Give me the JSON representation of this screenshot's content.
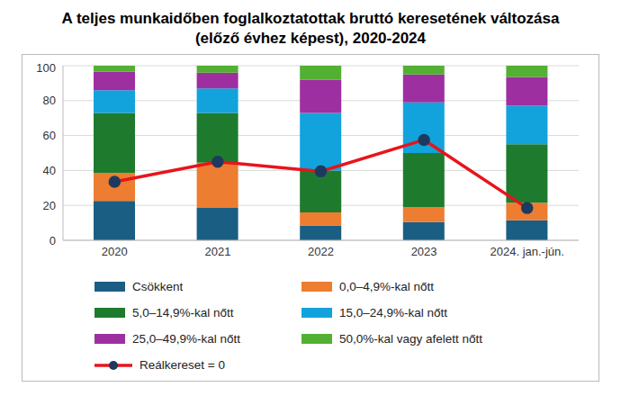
{
  "chart_data": {
    "type": "bar",
    "title": "A teljes munkaidőben foglalkoztatottak bruttó keresetének változása (előző évhez képest), 2020-2024",
    "categories": [
      "2020",
      "2021",
      "2022",
      "2023",
      "2024. jan.-jún."
    ],
    "series": [
      {
        "name": "Csökkent",
        "color": "#1b5e84",
        "type": "bar",
        "values": [
          22.5,
          18.5,
          8.5,
          10.5,
          11.5
        ]
      },
      {
        "name": "0,0–4,9%-kal nőtt",
        "color": "#ed7d31",
        "type": "bar",
        "values": [
          16,
          26,
          7.5,
          8.5,
          10
        ]
      },
      {
        "name": "5,0–14,9%-kal nőtt",
        "color": "#1e7b2e",
        "type": "bar",
        "values": [
          34.5,
          28.5,
          24,
          31,
          33.5
        ]
      },
      {
        "name": "15,0–24,9%-kal nőtt",
        "color": "#12a3dc",
        "type": "bar",
        "values": [
          13,
          14,
          33,
          29,
          22
        ]
      },
      {
        "name": "25,0–49,9%-kal nőtt",
        "color": "#9e2fa0",
        "type": "bar",
        "values": [
          10.5,
          9,
          19,
          16,
          16.5
        ]
      },
      {
        "name": "50,0%-kal vagy afelett nőtt",
        "color": "#52b032",
        "type": "bar",
        "values": [
          3.5,
          4,
          8,
          5,
          6.5
        ]
      },
      {
        "name": "Reálkereset = 0",
        "color": "#e8141b",
        "type": "line",
        "marker": "circle",
        "values": [
          33.5,
          45,
          39.5,
          57.5,
          18.5
        ]
      }
    ],
    "ylim": [
      0,
      100
    ],
    "yticks": [
      0,
      20,
      40,
      60,
      80,
      100
    ],
    "grid": true,
    "stacked": true,
    "legend": "bottom"
  }
}
